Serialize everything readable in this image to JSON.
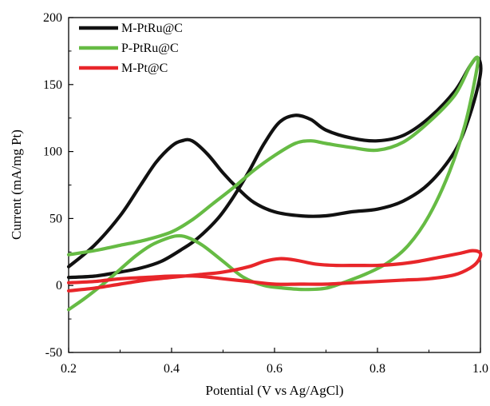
{
  "chart_data": {
    "type": "line",
    "xlabel": "Potential (V vs Ag/AgCl)",
    "ylabel": "Current (mA/mg Pt)",
    "xlim": [
      0.2,
      1.0
    ],
    "ylim": [
      -50,
      200
    ],
    "xticks": [
      0.2,
      0.4,
      0.6,
      0.8,
      1.0
    ],
    "xtick_labels": [
      "0.2",
      "0.4",
      "0.6",
      "0.8",
      "1.0"
    ],
    "yticks": [
      -50,
      0,
      50,
      100,
      150,
      200
    ],
    "ytick_labels": [
      "-50",
      "0",
      "50",
      "100",
      "150",
      "200"
    ],
    "grid": false,
    "legend_position": "top-left",
    "series": [
      {
        "name": "M-PtRu@C",
        "color": "#111111",
        "points": [
          [
            0.2,
            14
          ],
          [
            0.25,
            30
          ],
          [
            0.3,
            52
          ],
          [
            0.34,
            75
          ],
          [
            0.37,
            92
          ],
          [
            0.4,
            104
          ],
          [
            0.42,
            108
          ],
          [
            0.44,
            108
          ],
          [
            0.47,
            98
          ],
          [
            0.5,
            84
          ],
          [
            0.53,
            72
          ],
          [
            0.56,
            62
          ],
          [
            0.6,
            55
          ],
          [
            0.65,
            52
          ],
          [
            0.7,
            52
          ],
          [
            0.75,
            55
          ],
          [
            0.8,
            57
          ],
          [
            0.85,
            63
          ],
          [
            0.9,
            76
          ],
          [
            0.95,
            100
          ],
          [
            0.98,
            128
          ],
          [
            1.0,
            158
          ],
          [
            0.995,
            170
          ],
          [
            0.98,
            164
          ],
          [
            0.95,
            145
          ],
          [
            0.9,
            125
          ],
          [
            0.85,
            112
          ],
          [
            0.8,
            108
          ],
          [
            0.75,
            110
          ],
          [
            0.7,
            116
          ],
          [
            0.67,
            124
          ],
          [
            0.64,
            127
          ],
          [
            0.61,
            122
          ],
          [
            0.58,
            106
          ],
          [
            0.55,
            85
          ],
          [
            0.52,
            66
          ],
          [
            0.49,
            50
          ],
          [
            0.45,
            35
          ],
          [
            0.42,
            27
          ],
          [
            0.38,
            18
          ],
          [
            0.34,
            13
          ],
          [
            0.3,
            10
          ],
          [
            0.25,
            7
          ],
          [
            0.2,
            6
          ]
        ]
      },
      {
        "name": "P-PtRu@C",
        "color": "#66bb44",
        "points": [
          [
            0.2,
            -18
          ],
          [
            0.23,
            -10
          ],
          [
            0.27,
            2
          ],
          [
            0.3,
            12
          ],
          [
            0.33,
            22
          ],
          [
            0.36,
            30
          ],
          [
            0.39,
            35
          ],
          [
            0.41,
            37
          ],
          [
            0.43,
            36
          ],
          [
            0.46,
            30
          ],
          [
            0.5,
            18
          ],
          [
            0.54,
            6
          ],
          [
            0.58,
            0
          ],
          [
            0.62,
            -2
          ],
          [
            0.66,
            -3
          ],
          [
            0.7,
            -2
          ],
          [
            0.74,
            3
          ],
          [
            0.78,
            9
          ],
          [
            0.82,
            17
          ],
          [
            0.86,
            30
          ],
          [
            0.9,
            52
          ],
          [
            0.94,
            85
          ],
          [
            0.97,
            120
          ],
          [
            0.99,
            155
          ],
          [
            0.995,
            170
          ],
          [
            0.98,
            164
          ],
          [
            0.95,
            142
          ],
          [
            0.9,
            122
          ],
          [
            0.85,
            107
          ],
          [
            0.8,
            101
          ],
          [
            0.75,
            103
          ],
          [
            0.7,
            106
          ],
          [
            0.67,
            108
          ],
          [
            0.64,
            106
          ],
          [
            0.6,
            97
          ],
          [
            0.56,
            86
          ],
          [
            0.52,
            73
          ],
          [
            0.48,
            61
          ],
          [
            0.44,
            49
          ],
          [
            0.4,
            40
          ],
          [
            0.35,
            34
          ],
          [
            0.3,
            30
          ],
          [
            0.25,
            26
          ],
          [
            0.2,
            23
          ]
        ]
      },
      {
        "name": "M-Pt@C",
        "color": "#e8262a",
        "points": [
          [
            0.2,
            -4
          ],
          [
            0.25,
            -2
          ],
          [
            0.3,
            1
          ],
          [
            0.35,
            4
          ],
          [
            0.4,
            6
          ],
          [
            0.45,
            8
          ],
          [
            0.5,
            10
          ],
          [
            0.55,
            14
          ],
          [
            0.58,
            18
          ],
          [
            0.61,
            20
          ],
          [
            0.64,
            19
          ],
          [
            0.68,
            16
          ],
          [
            0.72,
            15
          ],
          [
            0.76,
            15
          ],
          [
            0.8,
            15
          ],
          [
            0.84,
            16
          ],
          [
            0.88,
            18
          ],
          [
            0.92,
            21
          ],
          [
            0.96,
            24
          ],
          [
            0.985,
            26
          ],
          [
            1.0,
            24
          ],
          [
            0.995,
            18
          ],
          [
            0.98,
            13
          ],
          [
            0.95,
            8
          ],
          [
            0.9,
            5
          ],
          [
            0.85,
            4
          ],
          [
            0.8,
            3
          ],
          [
            0.75,
            2
          ],
          [
            0.7,
            1
          ],
          [
            0.65,
            1
          ],
          [
            0.6,
            1
          ],
          [
            0.55,
            3
          ],
          [
            0.5,
            5
          ],
          [
            0.45,
            7
          ],
          [
            0.4,
            7
          ],
          [
            0.35,
            6
          ],
          [
            0.3,
            5
          ],
          [
            0.25,
            3
          ],
          [
            0.2,
            2
          ]
        ]
      }
    ]
  }
}
